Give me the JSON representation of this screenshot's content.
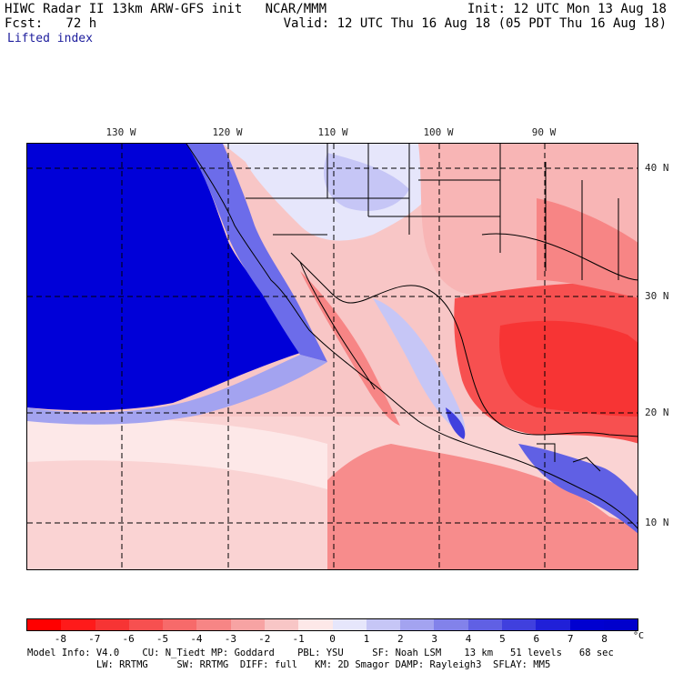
{
  "header": {
    "line1_left": "HIWC Radar II 13km ARW-GFS init   NCAR/MMM",
    "line1_right": "Init: 12 UTC Mon 13 Aug 18",
    "line2_left": "Fcst:   72 h",
    "line2_right": "Valid: 12 UTC Thu 16 Aug 18 (05 PDT Thu 16 Aug 18)",
    "field_name": "Lifted index"
  },
  "map": {
    "longitude_labels": [
      "130 W",
      "120 W",
      "110 W",
      "100 W",
      "90 W"
    ],
    "latitude_labels": [
      "40 N",
      "30 N",
      "20 N",
      "10 N"
    ]
  },
  "colorbar": {
    "ticks": [
      "-8",
      "-7",
      "-6",
      "-5",
      "-4",
      "-3",
      "-2",
      "-1",
      "0",
      "1",
      "2",
      "3",
      "4",
      "5",
      "6",
      "7",
      "8"
    ],
    "unit": "°C",
    "colors": [
      "#ff0000",
      "#ff1a1a",
      "#f73434",
      "#f75050",
      "#f76a6a",
      "#f78585",
      "#f7a3a3",
      "#f8c6c6",
      "#fde8e8",
      "#e6e6fb",
      "#c6c6f6",
      "#a3a3f0",
      "#8282ea",
      "#6060e4",
      "#4040de",
      "#2020d8",
      "#0000d0",
      "#0000cc"
    ]
  },
  "footer": {
    "line1": "Model Info: V4.0    CU: N_Tiedt MP: Goddard    PBL: YSU     SF: Noah LSM    13 km   51 levels   68 sec",
    "line2": "            LW: RRTMG     SW: RRTMG  DIFF: full   KM: 2D Smagor DAMP: Rayleigh3  SFLAY: MM5"
  }
}
